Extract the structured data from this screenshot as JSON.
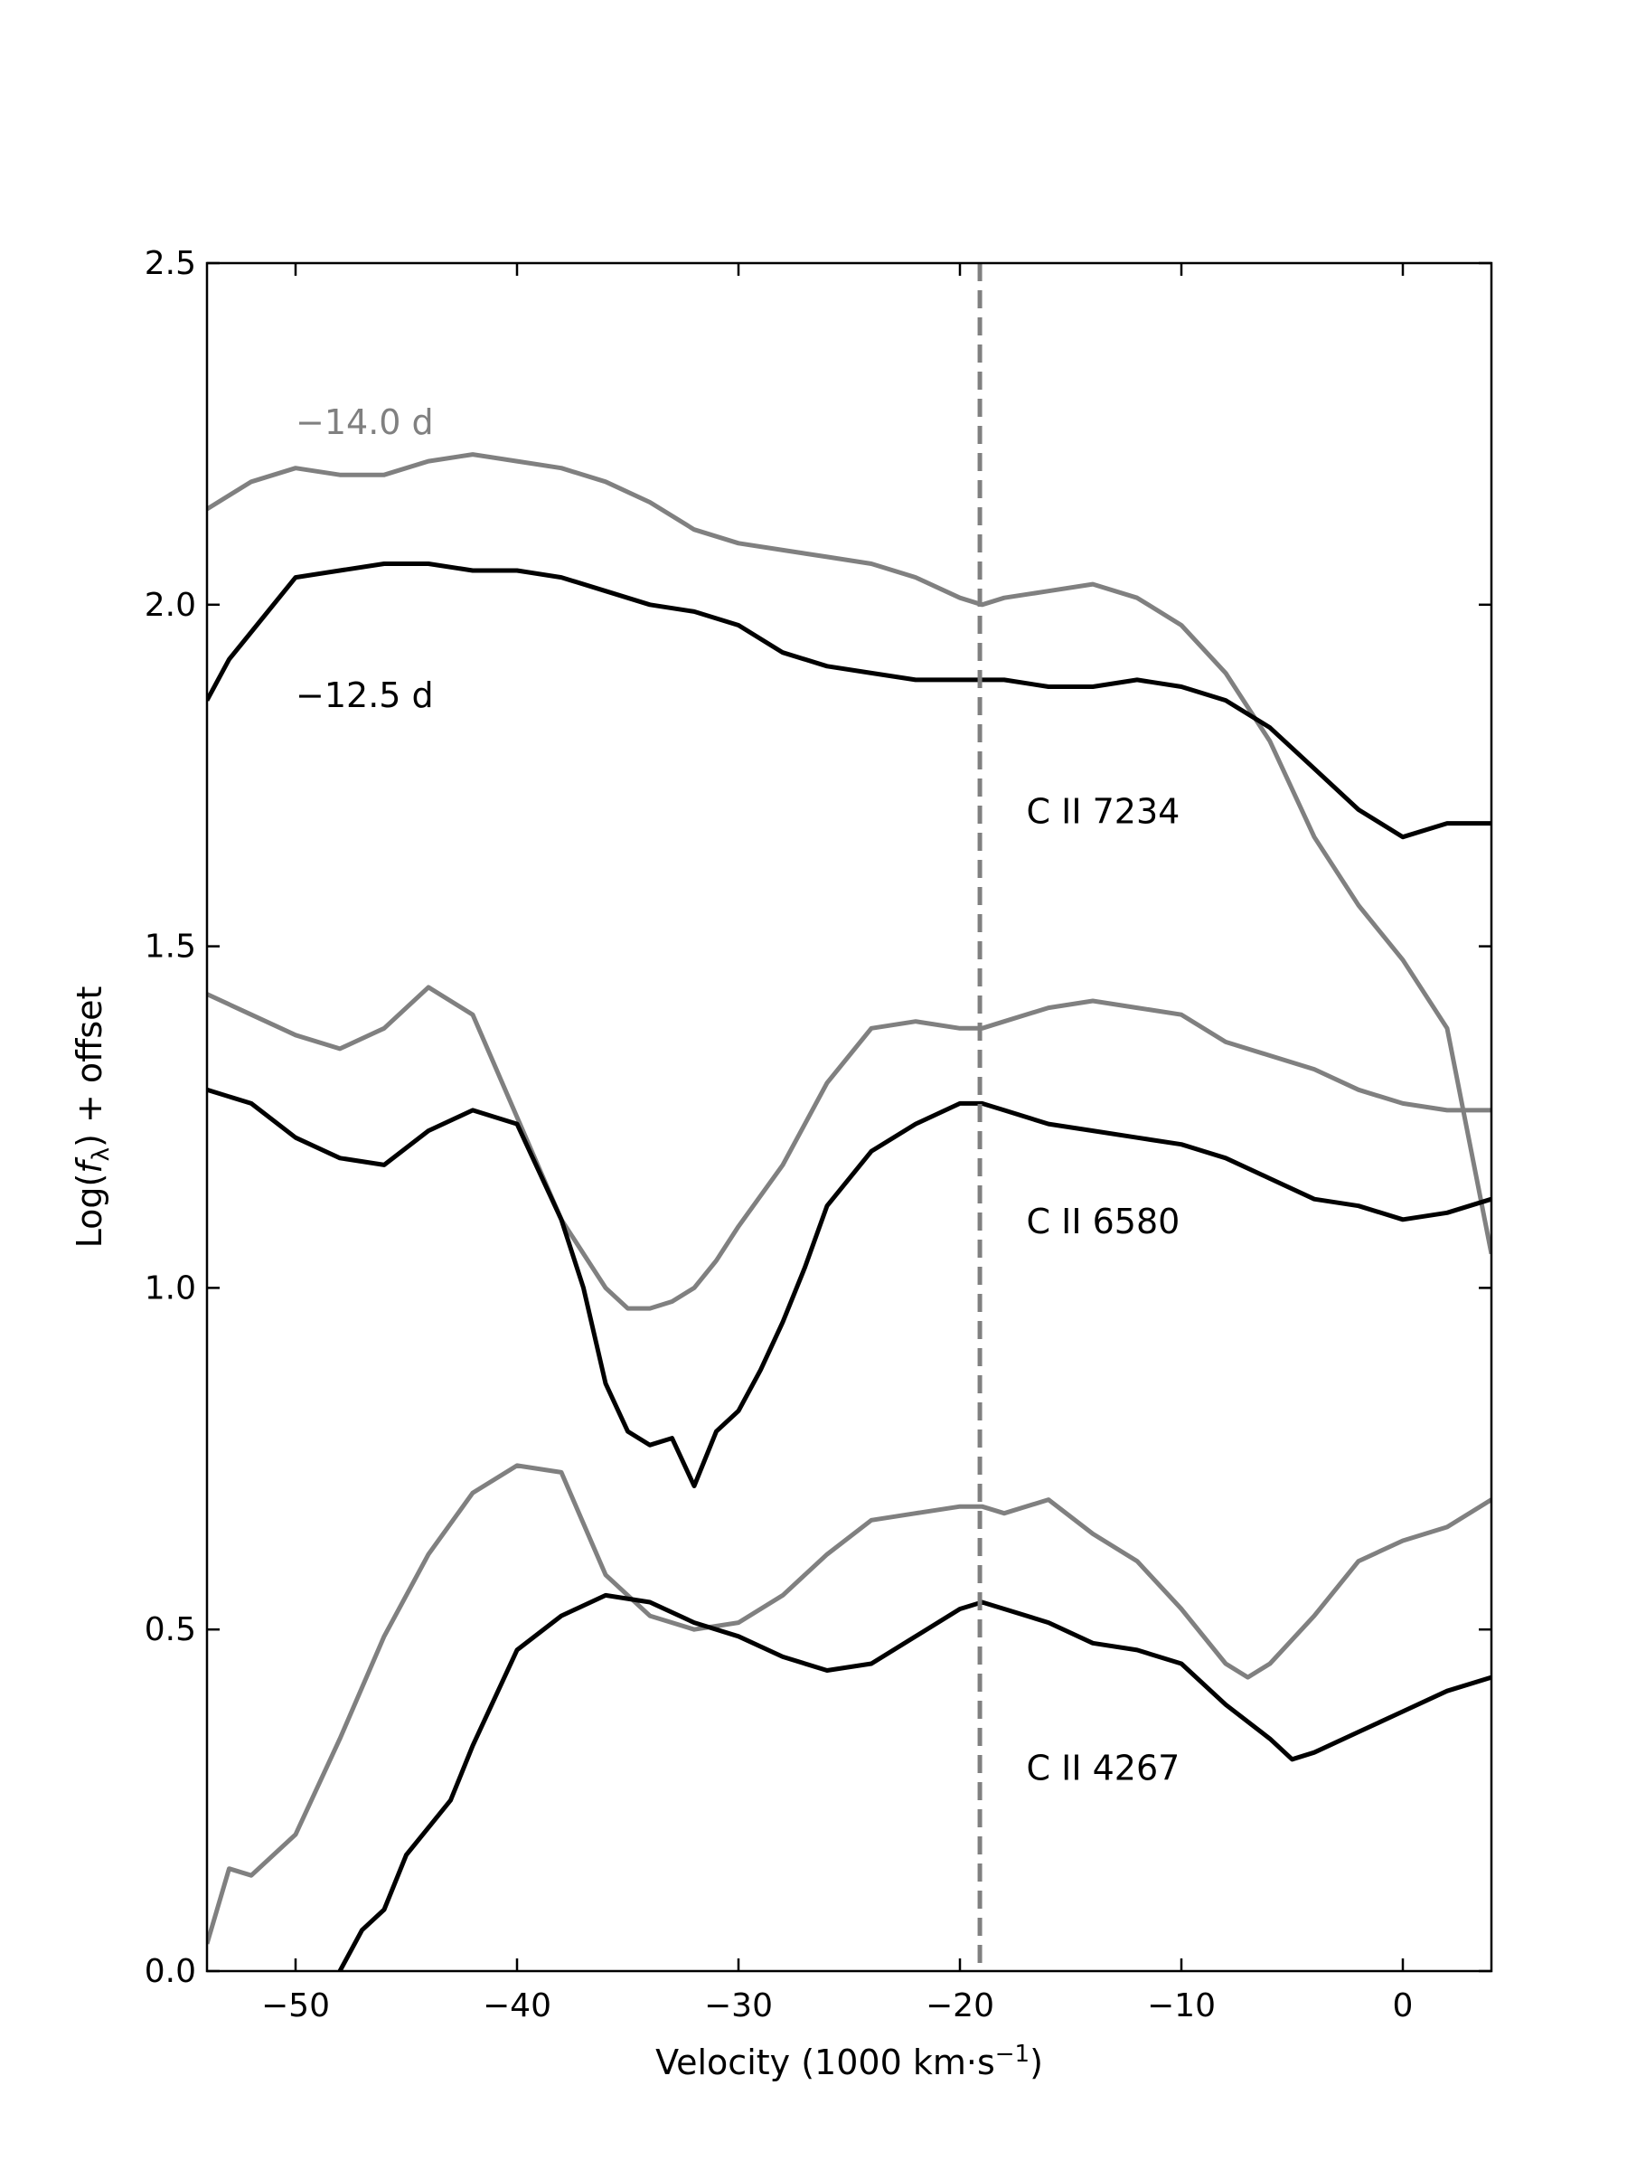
{
  "chart_data": {
    "type": "line",
    "xlabel": "Velocity (1000 km·s",
    "xlabel_sup": "−1",
    "xlabel_end": ")",
    "ylabel_pre": "Log(",
    "ylabel_var": "f",
    "ylabel_sub": "λ",
    "ylabel_post": ") + offset",
    "xlim": [
      -54,
      4
    ],
    "ylim": [
      0.0,
      2.5
    ],
    "x_ticks": [
      -50,
      -40,
      -30,
      -20,
      -10,
      0
    ],
    "x_tick_labels": [
      "−50",
      "−40",
      "−30",
      "−20",
      "−10",
      "0"
    ],
    "y_ticks": [
      0.0,
      0.5,
      1.0,
      1.5,
      2.0,
      2.5
    ],
    "y_tick_labels": [
      "0.0",
      "0.5",
      "1.0",
      "1.5",
      "2.0",
      "2.5"
    ],
    "reference_line": {
      "x": -19.1,
      "style": "dashed",
      "color": "#808080"
    },
    "epoch_labels": [
      {
        "text": "−14.0 d",
        "color": "#808080"
      },
      {
        "text": "−12.5 d",
        "color": "#000000"
      }
    ],
    "line_labels": [
      "C II 7234",
      "C II 6580",
      "C II 4267"
    ],
    "grid": false,
    "series": [
      {
        "color": "#808080",
        "x": [
          -54,
          -52,
          -50,
          -48,
          -46,
          -44,
          -42,
          -40,
          -38,
          -36,
          -34,
          -32,
          -30,
          -28,
          -26,
          -24,
          -22,
          -20,
          -19,
          -18,
          -16,
          -14,
          -12,
          -10,
          -8,
          -6,
          -4,
          -2,
          0,
          2,
          4
        ],
        "y": [
          2.14,
          2.18,
          2.2,
          2.19,
          2.19,
          2.21,
          2.22,
          2.21,
          2.2,
          2.18,
          2.15,
          2.11,
          2.09,
          2.08,
          2.07,
          2.06,
          2.04,
          2.01,
          2.0,
          2.01,
          2.02,
          2.03,
          2.01,
          1.97,
          1.9,
          1.8,
          1.66,
          1.56,
          1.48,
          1.38,
          1.05
        ]
      },
      {
        "color": "#000000",
        "x": [
          -54,
          -53,
          -52,
          -50,
          -48,
          -46,
          -44,
          -42,
          -40,
          -38,
          -36,
          -34,
          -32,
          -30,
          -28,
          -26,
          -24,
          -22,
          -20,
          -19,
          -18,
          -16,
          -14,
          -12,
          -10,
          -8,
          -6,
          -4,
          -2,
          0,
          2,
          4
        ],
        "y": [
          1.86,
          1.92,
          1.96,
          2.04,
          2.05,
          2.06,
          2.06,
          2.05,
          2.05,
          2.04,
          2.02,
          2.0,
          1.99,
          1.97,
          1.93,
          1.91,
          1.9,
          1.89,
          1.89,
          1.89,
          1.89,
          1.88,
          1.88,
          1.89,
          1.88,
          1.86,
          1.82,
          1.76,
          1.7,
          1.66,
          1.68,
          1.68
        ]
      },
      {
        "color": "#808080",
        "x": [
          -54,
          -52,
          -50,
          -48,
          -46,
          -44,
          -42,
          -40,
          -38,
          -36,
          -35,
          -34,
          -33,
          -32,
          -31,
          -30,
          -28,
          -26,
          -24,
          -22,
          -20,
          -19,
          -18,
          -16,
          -14,
          -12,
          -10,
          -8,
          -6,
          -4,
          -2,
          0,
          2,
          4
        ],
        "y": [
          1.43,
          1.4,
          1.37,
          1.35,
          1.38,
          1.44,
          1.4,
          1.25,
          1.1,
          1.0,
          0.97,
          0.97,
          0.98,
          1.0,
          1.04,
          1.09,
          1.18,
          1.3,
          1.38,
          1.39,
          1.38,
          1.38,
          1.39,
          1.41,
          1.42,
          1.41,
          1.4,
          1.36,
          1.34,
          1.32,
          1.29,
          1.27,
          1.26,
          1.26
        ]
      },
      {
        "color": "#000000",
        "x": [
          -54,
          -52,
          -50,
          -48,
          -46,
          -44,
          -42,
          -40,
          -38,
          -37,
          -36,
          -35,
          -34,
          -33,
          -32,
          -31,
          -30,
          -29,
          -28,
          -27,
          -26,
          -24,
          -22,
          -20,
          -19,
          -18,
          -16,
          -14,
          -12,
          -10,
          -8,
          -6,
          -4,
          -2,
          0,
          2,
          4
        ],
        "y": [
          1.29,
          1.27,
          1.22,
          1.19,
          1.18,
          1.23,
          1.26,
          1.24,
          1.1,
          1.0,
          0.86,
          0.79,
          0.77,
          0.78,
          0.71,
          0.79,
          0.82,
          0.88,
          0.95,
          1.03,
          1.12,
          1.2,
          1.24,
          1.27,
          1.27,
          1.26,
          1.24,
          1.23,
          1.22,
          1.21,
          1.19,
          1.16,
          1.13,
          1.12,
          1.1,
          1.11,
          1.13
        ]
      },
      {
        "color": "#808080",
        "x": [
          -54,
          -53,
          -52,
          -50,
          -48,
          -46,
          -44,
          -42,
          -40,
          -38,
          -36,
          -34,
          -32,
          -30,
          -28,
          -26,
          -24,
          -22,
          -20,
          -19,
          -18,
          -16,
          -14,
          -12,
          -10,
          -8,
          -7,
          -6,
          -4,
          -2,
          0,
          2,
          4
        ],
        "y": [
          0.04,
          0.15,
          0.14,
          0.2,
          0.34,
          0.49,
          0.61,
          0.7,
          0.74,
          0.73,
          0.58,
          0.52,
          0.5,
          0.51,
          0.55,
          0.61,
          0.66,
          0.67,
          0.68,
          0.68,
          0.67,
          0.69,
          0.64,
          0.6,
          0.53,
          0.45,
          0.43,
          0.45,
          0.52,
          0.6,
          0.63,
          0.65,
          0.69
        ]
      },
      {
        "color": "#000000",
        "x": [
          -48,
          -47,
          -46,
          -45,
          -44,
          -43,
          -42,
          -41,
          -40,
          -38,
          -36,
          -34,
          -32,
          -30,
          -28,
          -26,
          -24,
          -22,
          -20,
          -19,
          -18,
          -16,
          -14,
          -12,
          -10,
          -8,
          -6,
          -5,
          -4,
          -2,
          0,
          2,
          4
        ],
        "y": [
          0.0,
          0.06,
          0.09,
          0.17,
          0.21,
          0.25,
          0.33,
          0.4,
          0.47,
          0.52,
          0.55,
          0.54,
          0.51,
          0.49,
          0.46,
          0.44,
          0.45,
          0.49,
          0.53,
          0.54,
          0.53,
          0.51,
          0.48,
          0.47,
          0.45,
          0.39,
          0.34,
          0.31,
          0.32,
          0.35,
          0.38,
          0.41,
          0.43
        ]
      }
    ]
  }
}
